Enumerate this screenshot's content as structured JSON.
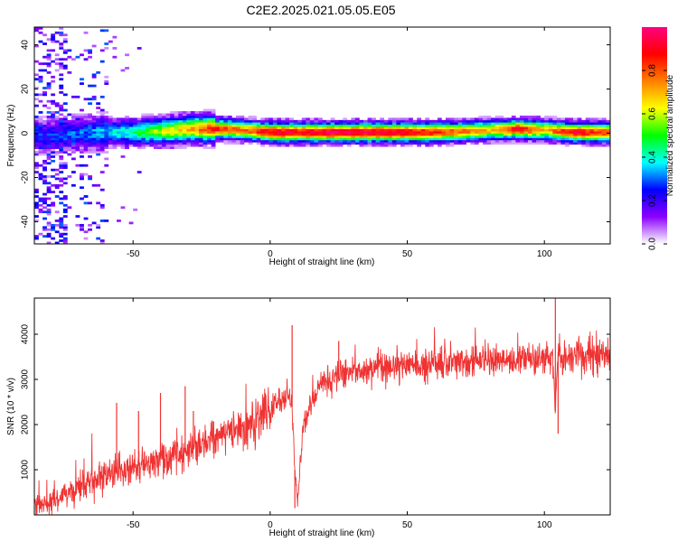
{
  "title": "C2E2.2025.021.05.05.E05",
  "chart_data": [
    {
      "type": "heatmap",
      "xlabel": "Height of straight line (km)",
      "ylabel": "Frequency (Hz)",
      "xlim": [
        -86,
        124
      ],
      "ylim": [
        -50,
        48
      ],
      "xticks": [
        -50,
        0,
        50,
        100
      ],
      "yticks": [
        -40,
        -20,
        0,
        20,
        40
      ],
      "colorbar": {
        "label": "Normalized spectral amplitude",
        "ticks": [
          0.0,
          0.2,
          0.4,
          0.6,
          0.8
        ],
        "tick_labels": [
          "0.0",
          "0.2",
          "0.4",
          "0.6",
          "0.8"
        ],
        "range": [
          0,
          1
        ],
        "colormap": [
          "#ffffff",
          "#8b00ff",
          "#0000ff",
          "#00ffff",
          "#00ff00",
          "#ffff00",
          "#ff8000",
          "#ff0000",
          "#ff0080"
        ]
      },
      "ridge": {
        "x": [
          -80,
          -70,
          -60,
          -50,
          -40,
          -30,
          -20,
          -10,
          0,
          10,
          20,
          30,
          40,
          50,
          60,
          70,
          80,
          90,
          100,
          110,
          124
        ],
        "frequency": [
          -1,
          0,
          0.5,
          0.5,
          1,
          2,
          2,
          1.5,
          0.5,
          0.5,
          0.5,
          0.5,
          0.5,
          0.5,
          0.5,
          1,
          1.5,
          2,
          1.5,
          0.5,
          0.5
        ],
        "amplitude": [
          0.25,
          0.3,
          0.35,
          0.45,
          0.6,
          0.7,
          0.85,
          0.75,
          0.95,
          0.9,
          0.95,
          0.95,
          0.95,
          0.9,
          0.85,
          0.75,
          0.7,
          0.9,
          0.7,
          0.9,
          0.8
        ]
      }
    },
    {
      "type": "line",
      "xlabel": "Height of straight line (km)",
      "ylabel": "SNR (10 * v/v)",
      "xlim": [
        -86,
        124
      ],
      "ylim": [
        0,
        4800
      ],
      "xticks": [
        -50,
        0,
        50,
        100
      ],
      "yticks": [
        1000,
        2000,
        3000,
        4000
      ],
      "color": "#f03232",
      "series": [
        {
          "x": [
            -86,
            -80,
            -75,
            -70,
            -65,
            -60,
            -55,
            -50,
            -45,
            -40,
            -35,
            -30,
            -25,
            -20,
            -15,
            -10,
            -5,
            0,
            3,
            6,
            8,
            9,
            10,
            12,
            15,
            18,
            20,
            25,
            30,
            35,
            40,
            45,
            50,
            55,
            60,
            65,
            70,
            75,
            80,
            85,
            90,
            95,
            100,
            103,
            104,
            105,
            106,
            110,
            115,
            120,
            124
          ],
          "values": [
            200,
            300,
            450,
            600,
            750,
            850,
            950,
            1050,
            1150,
            1250,
            1350,
            1450,
            1550,
            1700,
            1850,
            2000,
            2150,
            2300,
            2450,
            2700,
            2400,
            1000,
            300,
            2000,
            2500,
            2800,
            2900,
            3050,
            3150,
            3200,
            3250,
            3250,
            3300,
            3300,
            3350,
            3350,
            3400,
            3400,
            3400,
            3400,
            3450,
            3450,
            3450,
            3550,
            2300,
            3600,
            3450,
            3500,
            3500,
            3550,
            3550
          ],
          "spikes": [
            {
              "x": -85,
              "value": 380
            },
            {
              "x": -56,
              "value": 2480
            },
            {
              "x": -48,
              "value": 2300
            },
            {
              "x": -40,
              "value": 2700
            },
            {
              "x": -31,
              "value": 2850
            },
            {
              "x": -28,
              "value": 2300
            },
            {
              "x": 8,
              "value": 4200
            },
            {
              "x": 9,
              "value": 150
            },
            {
              "x": 25,
              "value": 3850
            },
            {
              "x": 104,
              "value": 4800
            },
            {
              "x": 105,
              "value": 1800
            }
          ]
        }
      ]
    }
  ]
}
